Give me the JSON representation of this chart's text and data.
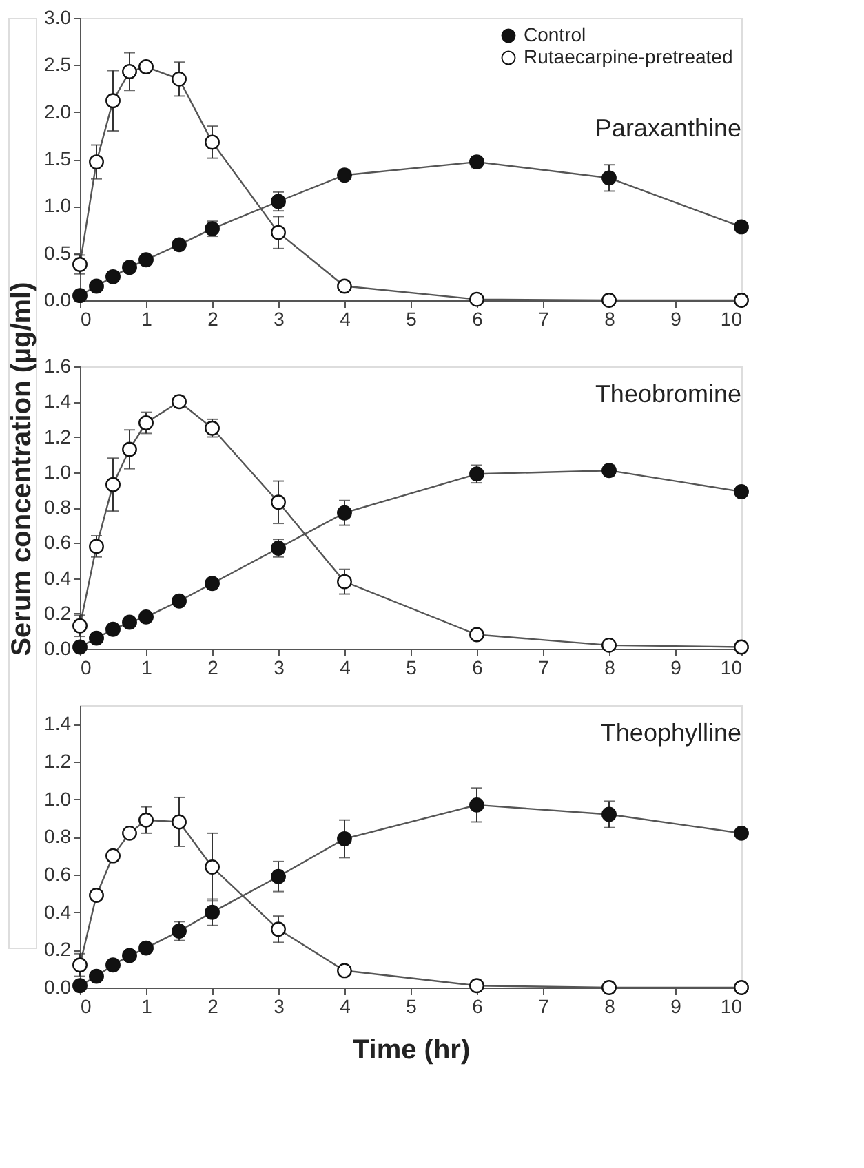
{
  "chart_data": [
    {
      "type": "line",
      "title": "Paraxanthine",
      "x": [
        0,
        0.25,
        0.5,
        0.75,
        1,
        1.5,
        2,
        3,
        4,
        6,
        8,
        10
      ],
      "xlim": [
        0,
        10
      ],
      "xticks": [
        0,
        1,
        2,
        3,
        4,
        5,
        6,
        7,
        8,
        9,
        10
      ],
      "ylim": [
        0,
        3.0
      ],
      "yticks": [
        {
          "value": 0,
          "label": "0.0"
        },
        0.5,
        {
          "value": 1,
          "label": "1.0"
        },
        1.5,
        {
          "value": 2,
          "label": "2.0"
        },
        2.5,
        {
          "value": 3,
          "label": "3.0"
        }
      ],
      "marker": "circle",
      "line_style": "solid",
      "grid": false,
      "legend": "top right",
      "series": [
        {
          "name": "Control",
          "color": "#111111",
          "values": [
            0.05,
            0.15,
            0.25,
            0.35,
            0.43,
            0.59,
            0.76,
            1.05,
            1.33,
            1.47,
            1.3,
            0.78
          ],
          "errors": [
            null,
            null,
            null,
            null,
            null,
            null,
            0.08,
            0.1,
            null,
            0.06,
            0.14,
            null
          ]
        },
        {
          "name": "Rutaecarpine-pretreated",
          "color": "#ffffff",
          "values": [
            0.38,
            1.47,
            2.12,
            2.43,
            2.48,
            2.35,
            1.68,
            0.72,
            0.15,
            0.01,
            0.0,
            0.0
          ],
          "errors": [
            0.1,
            0.18,
            0.32,
            0.2,
            null,
            0.18,
            0.17,
            0.17,
            0.03,
            null,
            null,
            null
          ]
        }
      ]
    },
    {
      "type": "line",
      "title": "Theobromine",
      "ylabel": "Serum concentration (µg/ml)",
      "x": [
        0,
        0.25,
        0.5,
        0.75,
        1,
        1.5,
        2,
        3,
        4,
        6,
        8,
        10
      ],
      "xlim": [
        0,
        10
      ],
      "xticks": [
        0,
        1,
        2,
        3,
        4,
        5,
        6,
        7,
        8,
        9,
        10
      ],
      "ylim": [
        0,
        1.6
      ],
      "yticks": [
        {
          "value": 0,
          "label": "0.0"
        },
        0.2,
        0.4,
        0.6,
        0.8,
        {
          "value": 1,
          "label": "1.0"
        },
        1.2,
        1.4,
        1.6
      ],
      "marker": "circle",
      "line_style": "solid",
      "grid": false,
      "series": [
        {
          "color": "#111111",
          "values": [
            0.01,
            0.06,
            0.11,
            0.15,
            0.18,
            0.27,
            0.37,
            0.57,
            0.77,
            0.99,
            1.01,
            0.89
          ],
          "errors": [
            null,
            null,
            null,
            null,
            null,
            null,
            null,
            0.05,
            0.07,
            0.05,
            0.03,
            null
          ]
        },
        {
          "color": "#ffffff",
          "values": [
            0.13,
            0.58,
            0.93,
            1.13,
            1.28,
            1.4,
            1.25,
            0.83,
            0.38,
            0.08,
            0.02,
            0.01
          ],
          "errors": [
            0.06,
            0.06,
            0.15,
            0.11,
            0.06,
            0.03,
            0.05,
            0.12,
            0.07,
            null,
            null,
            null
          ]
        }
      ]
    },
    {
      "type": "line",
      "title": "Theophylline",
      "xlabel": "Time (hr)",
      "x": [
        0,
        0.25,
        0.5,
        0.75,
        1,
        1.5,
        2,
        3,
        4,
        6,
        8,
        10
      ],
      "xlim": [
        0,
        10
      ],
      "xticks": [
        0,
        1,
        2,
        3,
        4,
        5,
        6,
        7,
        8,
        9,
        10
      ],
      "ylim": [
        0,
        1.5
      ],
      "yticks": [
        {
          "value": 0,
          "label": "0.0"
        },
        0.2,
        0.4,
        0.6,
        0.8,
        {
          "value": 1,
          "label": "1.0"
        },
        1.2,
        1.4
      ],
      "marker": "circle",
      "line_style": "solid",
      "grid": false,
      "series": [
        {
          "color": "#111111",
          "values": [
            0.01,
            0.06,
            0.12,
            0.17,
            0.21,
            0.3,
            0.4,
            0.59,
            0.79,
            0.97,
            0.92,
            0.82
          ],
          "errors": [
            null,
            null,
            null,
            null,
            null,
            0.05,
            0.07,
            0.08,
            0.1,
            0.09,
            0.07,
            null
          ]
        },
        {
          "color": "#ffffff",
          "values": [
            0.12,
            0.49,
            0.7,
            0.82,
            0.89,
            0.88,
            0.64,
            0.31,
            0.09,
            0.01,
            0.0,
            0.0
          ],
          "errors": [
            0.06,
            null,
            null,
            null,
            0.07,
            0.13,
            0.18,
            0.07,
            null,
            null,
            null,
            null
          ]
        }
      ]
    }
  ]
}
